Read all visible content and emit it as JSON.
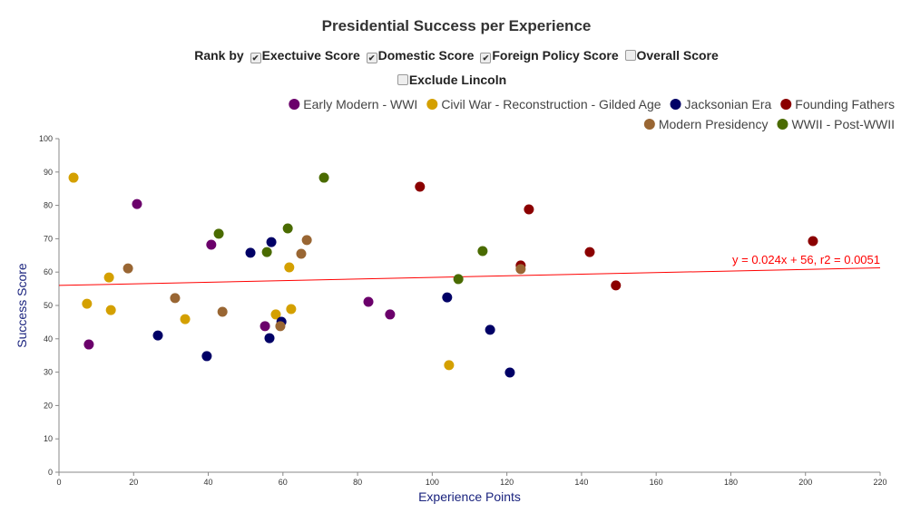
{
  "title": "Presidential Success per Experience",
  "controls": {
    "rank_by_label": "Rank by",
    "options": [
      {
        "label": "Exectuive Score",
        "checked": true
      },
      {
        "label": "Domestic Score",
        "checked": true
      },
      {
        "label": "Foreign Policy Score",
        "checked": true
      },
      {
        "label": "Overall Score",
        "checked": false
      }
    ],
    "exclude": {
      "label": "Exclude Lincoln",
      "checked": false
    }
  },
  "chart_data": {
    "type": "scatter",
    "title": "Presidential Success per Experience",
    "xlabel": "Experience Points",
    "ylabel": "Success Score",
    "xlim": [
      0,
      220
    ],
    "ylim": [
      0,
      100
    ],
    "xticks": [
      0,
      20,
      40,
      60,
      80,
      100,
      120,
      140,
      160,
      180,
      200,
      220
    ],
    "yticks": [
      0,
      10,
      20,
      30,
      40,
      50,
      60,
      70,
      80,
      90,
      100
    ],
    "grid": false,
    "legend": "top-right",
    "trendline": {
      "slope": 0.024,
      "intercept": 56,
      "label": "y = 0.024x + 56, r2 = 0.0051",
      "color": "#ff0000"
    },
    "series": [
      {
        "name": "Early Modern - WWI",
        "color": "#6b006b",
        "points": [
          [
            8,
            38.3
          ],
          [
            20.9,
            80.4
          ],
          [
            40.8,
            68.2
          ],
          [
            55.2,
            43.8
          ],
          [
            82.9,
            51.1
          ],
          [
            88.7,
            47.3
          ]
        ]
      },
      {
        "name": "Civil War - Reconstruction - Gilded Age",
        "color": "#d4a000",
        "points": [
          [
            3.9,
            88.3
          ],
          [
            7.5,
            50.5
          ],
          [
            13.4,
            58.4
          ],
          [
            13.9,
            48.6
          ],
          [
            33.8,
            45.9
          ],
          [
            58.1,
            47.3
          ],
          [
            61.7,
            61.4
          ],
          [
            62.2,
            48.9
          ],
          [
            104.5,
            32.1
          ]
        ]
      },
      {
        "name": "Jacksonian Era",
        "color": "#000066",
        "points": [
          [
            26.5,
            41
          ],
          [
            39.6,
            34.8
          ],
          [
            51.3,
            65.8
          ],
          [
            56.9,
            69
          ],
          [
            56.4,
            40.2
          ],
          [
            59.6,
            45.1
          ],
          [
            104,
            52.4
          ],
          [
            115.5,
            42.7
          ],
          [
            120.8,
            29.9
          ]
        ]
      },
      {
        "name": "Founding Fathers",
        "color": "#8b0000",
        "points": [
          [
            96.7,
            85.6
          ],
          [
            125.9,
            78.8
          ],
          [
            123.7,
            62
          ],
          [
            142.2,
            66
          ],
          [
            149.2,
            56
          ],
          [
            202,
            69.3
          ]
        ]
      },
      {
        "name": "Modern Presidency",
        "color": "#996633",
        "points": [
          [
            18.5,
            61.1
          ],
          [
            31.1,
            52.2
          ],
          [
            43.8,
            48.1
          ],
          [
            59.3,
            43.8
          ],
          [
            64.9,
            65.5
          ],
          [
            66.4,
            69.6
          ],
          [
            123.7,
            60.9
          ]
        ]
      },
      {
        "name": "WWII - Post-WWII",
        "color": "#4a6b00",
        "points": [
          [
            42.8,
            71.5
          ],
          [
            55.7,
            66
          ],
          [
            61.3,
            73.1
          ],
          [
            71,
            88.3
          ],
          [
            107,
            57.9
          ],
          [
            113.5,
            66.3
          ]
        ]
      }
    ]
  }
}
